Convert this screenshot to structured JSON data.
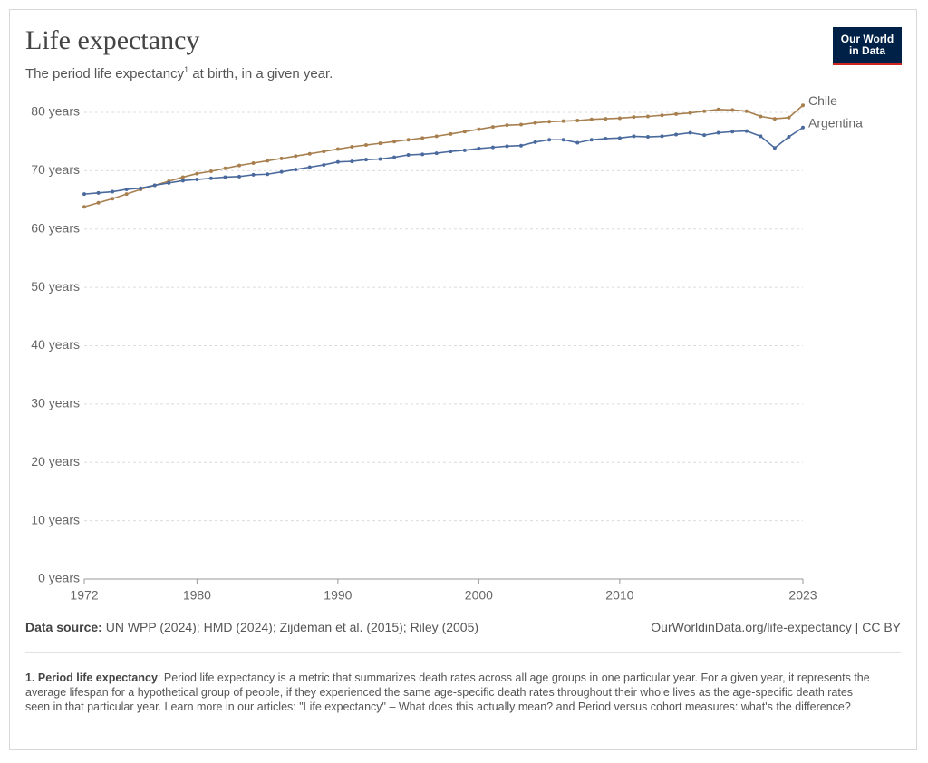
{
  "chart_data": {
    "type": "line",
    "title": "Life expectancy",
    "subtitle": [
      "The period life expectancy",
      "1",
      " at birth, in a given year."
    ],
    "logo": [
      "Our World",
      "in Data"
    ],
    "source_label": "Data source:",
    "source": "UN WPP (2024); HMD (2024); Zijdeman et al. (2015); Riley (2005)",
    "credit": "OurWorldinData.org/life-expectancy | CC BY",
    "footnote_label": "1. Period life expectancy",
    "footnote": ": Period life expectancy is a metric that summarizes death rates across all age groups in one particular year. For a given year, it represents the average lifespan for a hypothetical group of people, if they experienced the same age-specific death rates throughout their whole lives as the age-specific death rates seen in that particular year. Learn more in our articles: \"Life expectancy\" – What does this actually mean? and Period versus cohort measures: what's the difference?",
    "x": [
      1972,
      1973,
      1974,
      1975,
      1976,
      1977,
      1978,
      1979,
      1980,
      1981,
      1982,
      1983,
      1984,
      1985,
      1986,
      1987,
      1988,
      1989,
      1990,
      1991,
      1992,
      1993,
      1994,
      1995,
      1996,
      1997,
      1998,
      1999,
      2000,
      2001,
      2002,
      2003,
      2004,
      2005,
      2006,
      2007,
      2008,
      2009,
      2010,
      2011,
      2012,
      2013,
      2014,
      2015,
      2016,
      2017,
      2018,
      2019,
      2020,
      2021,
      2022,
      2023
    ],
    "series": [
      {
        "name": "Chile",
        "color": "#a8804f",
        "values": [
          63.8,
          64.5,
          65.2,
          66.0,
          66.8,
          67.5,
          68.2,
          68.9,
          69.5,
          69.9,
          70.4,
          70.9,
          71.3,
          71.7,
          72.1,
          72.5,
          72.9,
          73.3,
          73.7,
          74.1,
          74.4,
          74.7,
          75.0,
          75.3,
          75.6,
          75.9,
          76.3,
          76.7,
          77.1,
          77.5,
          77.8,
          77.9,
          78.2,
          78.4,
          78.5,
          78.6,
          78.8,
          78.9,
          79.0,
          79.2,
          79.3,
          79.5,
          79.7,
          79.9,
          80.2,
          80.5,
          80.4,
          80.2,
          79.3,
          78.9,
          79.1,
          81.2
        ]
      },
      {
        "name": "Argentina",
        "color": "#4a6a9e",
        "values": [
          66.0,
          66.2,
          66.4,
          66.8,
          67.0,
          67.5,
          67.9,
          68.3,
          68.5,
          68.7,
          68.9,
          69.0,
          69.3,
          69.4,
          69.8,
          70.2,
          70.6,
          71.0,
          71.5,
          71.6,
          71.9,
          72.0,
          72.3,
          72.7,
          72.8,
          73.0,
          73.3,
          73.5,
          73.8,
          74.0,
          74.2,
          74.3,
          74.9,
          75.3,
          75.3,
          74.8,
          75.3,
          75.5,
          75.6,
          75.9,
          75.8,
          75.9,
          76.2,
          76.5,
          76.1,
          76.5,
          76.7,
          76.8,
          75.9,
          73.9,
          75.8,
          77.4
        ]
      }
    ],
    "xlim": [
      1972,
      2023
    ],
    "xticks": [
      1972,
      1980,
      1990,
      2000,
      2010,
      2023
    ],
    "ylim": [
      0,
      80
    ],
    "yticks": [
      {
        "value": 0,
        "label": "0 years"
      },
      {
        "value": 10,
        "label": "10 years"
      },
      {
        "value": 20,
        "label": "20 years"
      },
      {
        "value": 30,
        "label": "30 years"
      },
      {
        "value": 40,
        "label": "40 years"
      },
      {
        "value": 50,
        "label": "50 years"
      },
      {
        "value": 60,
        "label": "60 years"
      },
      {
        "value": 70,
        "label": "70 years"
      },
      {
        "value": 80,
        "label": "80 years"
      }
    ],
    "grid": true
  }
}
